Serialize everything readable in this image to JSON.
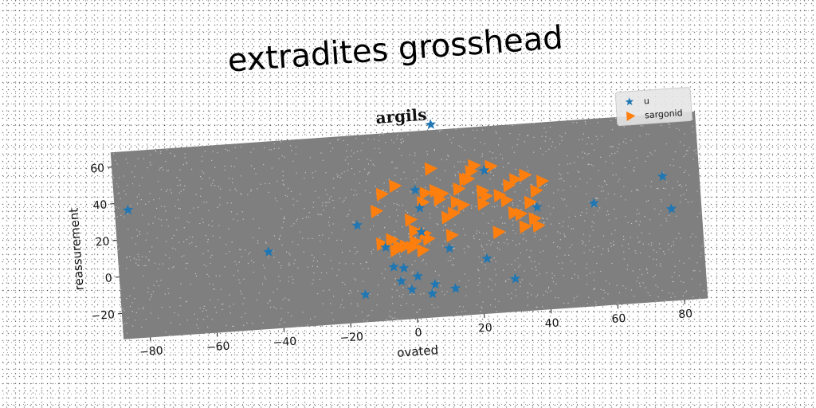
{
  "figure": {
    "super_title": "extradites grosshead"
  },
  "chart_data": {
    "type": "scatter",
    "title": "argils",
    "xlabel": "ovated",
    "ylabel": "reassurement",
    "xlim": [
      -88,
      87
    ],
    "ylim": [
      -34,
      68
    ],
    "x_ticks": [
      -80,
      -60,
      -40,
      -20,
      0,
      20,
      40,
      60,
      80
    ],
    "y_ticks": [
      -20,
      0,
      20,
      40,
      60
    ],
    "grid": false,
    "legend": "top-right",
    "series": [
      {
        "name": "u",
        "marker": "star",
        "color": "#1f77b4",
        "points": [
          [
            -84,
            36
          ],
          [
            -43,
            8
          ],
          [
            -16,
            19
          ],
          [
            -15,
            -19
          ],
          [
            -8,
            6
          ],
          [
            -6,
            -5
          ],
          [
            -4,
            -13
          ],
          [
            -3,
            -6
          ],
          [
            -1,
            -18
          ],
          [
            1,
            -11
          ],
          [
            2,
            36
          ],
          [
            3,
            26
          ],
          [
            3,
            13
          ],
          [
            5,
            -21
          ],
          [
            6,
            -16
          ],
          [
            8,
            71
          ],
          [
            11,
            3
          ],
          [
            12,
            -19
          ],
          [
            22,
            -4
          ],
          [
            23,
            44
          ],
          [
            30,
            -16
          ],
          [
            38,
            22
          ],
          [
            55,
            22
          ],
          [
            76,
            34
          ],
          [
            78,
            16
          ]
        ]
      },
      {
        "name": "sargonid",
        "marker": "triangle-right",
        "color": "#ff7f0e",
        "points": [
          [
            -10,
            26
          ],
          [
            -8,
            35
          ],
          [
            -4,
            39
          ],
          [
            -9,
            8
          ],
          [
            -6,
            10
          ],
          [
            -4,
            6
          ],
          [
            -2,
            6
          ],
          [
            0,
            5
          ],
          [
            1,
            8
          ],
          [
            3,
            3
          ],
          [
            4,
            12
          ],
          [
            5,
            9
          ],
          [
            0,
            20
          ],
          [
            1,
            14
          ],
          [
            4,
            29
          ],
          [
            5,
            34
          ],
          [
            7,
            47
          ],
          [
            8,
            35
          ],
          [
            9,
            30
          ],
          [
            10,
            33
          ],
          [
            11,
            20
          ],
          [
            12,
            10
          ],
          [
            13,
            22
          ],
          [
            14,
            28
          ],
          [
            15,
            35
          ],
          [
            16,
            26
          ],
          [
            18,
            40
          ],
          [
            19,
            44
          ],
          [
            20,
            47
          ],
          [
            22,
            33
          ],
          [
            23,
            30
          ],
          [
            25,
            46
          ],
          [
            27,
            30
          ],
          [
            29,
            27
          ],
          [
            30,
            35
          ],
          [
            31,
            20
          ],
          [
            32,
            38
          ],
          [
            33,
            19
          ],
          [
            34,
            12
          ],
          [
            35,
            40
          ],
          [
            36,
            25
          ],
          [
            37,
            16
          ],
          [
            38,
            31
          ],
          [
            40,
            36
          ],
          [
            20,
            47
          ],
          [
            26,
            10
          ],
          [
            17,
            40
          ],
          [
            22,
            26
          ],
          [
            38,
            12
          ],
          [
            -5,
            4
          ]
        ]
      }
    ]
  }
}
